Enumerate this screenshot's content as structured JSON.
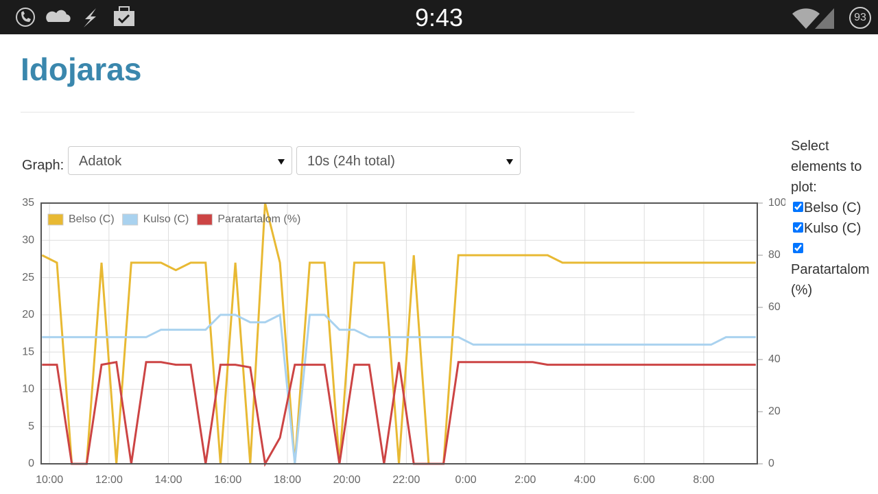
{
  "status_bar": {
    "time": "9:43",
    "battery": "93"
  },
  "header": {
    "title": "Idojaras"
  },
  "controls": {
    "label": "Graph:",
    "graph_select": "Adatok",
    "range_select": "10s (24h total)"
  },
  "sidebar": {
    "heading": "Select elements to plot:",
    "options": [
      {
        "label": "Belso (C)",
        "checked": true
      },
      {
        "label": "Kulso (C)",
        "checked": true
      },
      {
        "label": "Paratartalom (%)",
        "checked": true
      }
    ]
  },
  "chart_data": {
    "type": "line",
    "legend": "upper left",
    "grid": true,
    "x": [
      9.75,
      10.25,
      10.75,
      11.25,
      11.75,
      12.25,
      12.75,
      13.25,
      13.75,
      14.25,
      14.75,
      15.25,
      15.75,
      16.25,
      16.75,
      17.25,
      17.75,
      18.25,
      18.75,
      19.25,
      19.75,
      20.25,
      20.75,
      21.25,
      21.75,
      22.25,
      22.75,
      23.25,
      23.75,
      24.25,
      24.75,
      25.25,
      25.75,
      26.25,
      26.75,
      27.25,
      27.75,
      28.25,
      28.75,
      29.25,
      29.75,
      30.25,
      30.75,
      31.25,
      31.75,
      32.25,
      32.75,
      33.25,
      33.75
    ],
    "xlim": [
      9.72,
      33.8
    ],
    "xticks": [
      {
        "value": 10,
        "label": "10:00"
      },
      {
        "value": 12,
        "label": "12:00"
      },
      {
        "value": 14,
        "label": "14:00"
      },
      {
        "value": 16,
        "label": "16:00"
      },
      {
        "value": 18,
        "label": "18:00"
      },
      {
        "value": 20,
        "label": "20:00"
      },
      {
        "value": 22,
        "label": "22:00"
      },
      {
        "value": 24,
        "label": "0:00"
      },
      {
        "value": 26,
        "label": "2:00"
      },
      {
        "value": 28,
        "label": "4:00"
      },
      {
        "value": 30,
        "label": "6:00"
      },
      {
        "value": 32,
        "label": "8:00"
      }
    ],
    "ylim": [
      0,
      35
    ],
    "yticks": [
      0,
      5,
      10,
      15,
      20,
      25,
      30,
      35
    ],
    "y2lim": [
      0,
      100
    ],
    "y2ticks": [
      0,
      20,
      40,
      60,
      80,
      100
    ],
    "series": [
      {
        "name": "Belso (C)",
        "color": "#e8b933",
        "values": [
          28,
          27,
          0,
          0,
          27,
          0,
          27,
          27,
          27,
          26,
          27,
          27,
          0,
          27,
          0,
          35,
          27,
          0,
          27,
          27,
          0,
          27,
          27,
          27,
          0,
          28,
          0,
          0,
          28,
          28,
          28,
          28,
          28,
          28,
          28,
          27,
          27,
          27,
          27,
          27,
          27,
          27,
          27,
          27,
          27,
          27,
          27,
          27,
          27
        ]
      },
      {
        "name": "Kulso (C)",
        "color": "#a9d2ef",
        "values": [
          17,
          17,
          17,
          17,
          17,
          17,
          17,
          17,
          18,
          18,
          18,
          18,
          20,
          20,
          19,
          19,
          20,
          0,
          20,
          20,
          18,
          18,
          17,
          17,
          17,
          17,
          17,
          17,
          17,
          16,
          16,
          16,
          16,
          16,
          16,
          16,
          16,
          16,
          16,
          16,
          16,
          16,
          16,
          16,
          16,
          16,
          17,
          17,
          17
        ]
      },
      {
        "name": "Paratartalom (%)",
        "color": "#cc4444",
        "axis": "y2",
        "values": [
          38,
          38,
          0,
          0,
          38,
          39,
          0,
          39,
          39,
          38,
          38,
          0,
          38,
          38,
          37,
          0,
          10,
          38,
          38,
          38,
          0,
          38,
          38,
          0,
          39,
          0,
          0,
          0,
          39,
          39,
          39,
          39,
          39,
          39,
          38,
          38,
          38,
          38,
          38,
          38,
          38,
          38,
          38,
          38,
          38,
          38,
          38,
          38,
          38
        ]
      }
    ]
  }
}
